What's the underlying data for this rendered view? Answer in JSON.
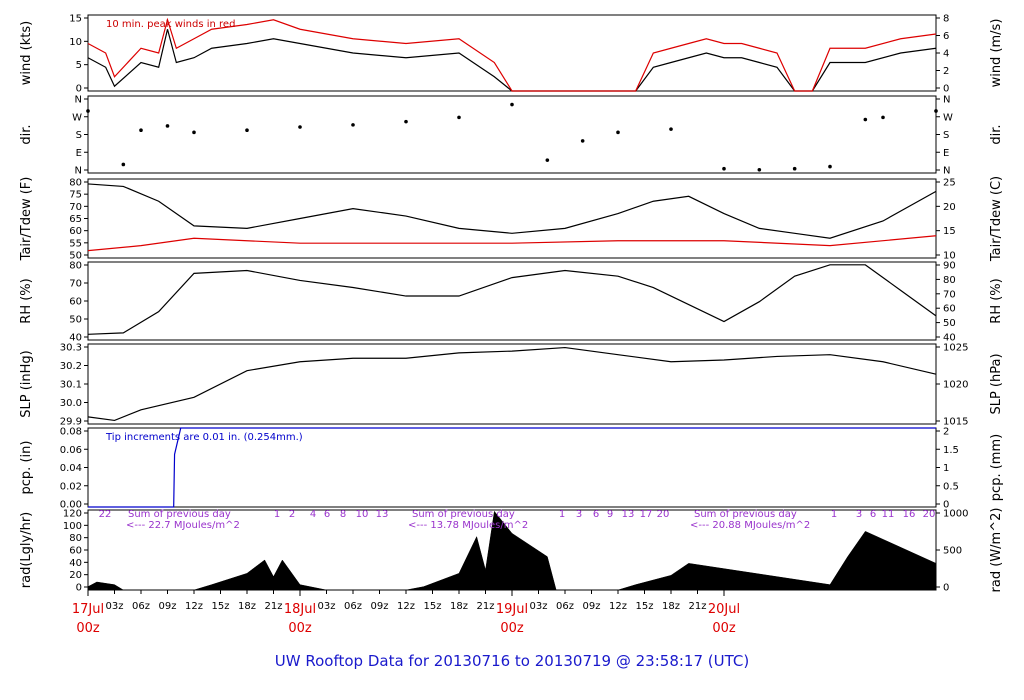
{
  "title": "UW Rooftop Data for 20130716  to  20130719 @ 23:58:17  (UTC)",
  "chart_data": [
    {
      "type": "line",
      "panel": "wind",
      "ylabel_left": "wind (kts)",
      "ylabel_right": "wind (m/s)",
      "ylim": [
        0,
        16
      ],
      "yticks_left": [
        "0",
        "5",
        "10",
        "15"
      ],
      "yticks_right": [
        "0",
        "2",
        "4",
        "6",
        "8"
      ],
      "annotation": "10 min. peak winds in red",
      "series": [
        {
          "color": "#000000",
          "x_hours": [
            0,
            2,
            3,
            6,
            8,
            9,
            10,
            12,
            14,
            18,
            21,
            24,
            30,
            36,
            42,
            46,
            48,
            50,
            54,
            58,
            62,
            64,
            66,
            68,
            70,
            72,
            74,
            76,
            78,
            80,
            82,
            84,
            88,
            92,
            96
          ],
          "values": [
            7,
            5,
            1,
            6,
            5,
            13,
            6,
            7,
            9,
            10,
            11,
            10,
            8,
            7,
            8,
            3,
            0,
            0,
            0,
            0,
            0,
            5,
            6,
            7,
            8,
            7,
            7,
            6,
            5,
            0,
            0,
            6,
            6,
            8,
            9
          ]
        },
        {
          "color": "#dd0000",
          "x_hours": [
            0,
            2,
            3,
            6,
            8,
            9,
            10,
            12,
            14,
            18,
            21,
            24,
            30,
            36,
            42,
            46,
            48,
            50,
            54,
            58,
            62,
            64,
            66,
            68,
            70,
            72,
            74,
            76,
            78,
            80,
            82,
            84,
            88,
            92,
            96
          ],
          "values": [
            10,
            8,
            3,
            9,
            8,
            15,
            9,
            11,
            13,
            14,
            15,
            13,
            11,
            10,
            11,
            6,
            0,
            0,
            0,
            0,
            0,
            8,
            9,
            10,
            11,
            10,
            10,
            9,
            8,
            0,
            0,
            9,
            9,
            11,
            12
          ]
        }
      ]
    },
    {
      "type": "scatter",
      "panel": "dir",
      "ylabel_left": "dir.",
      "ylabel_right": "dir.",
      "yticks_left": [
        "N",
        "E",
        "S",
        "W",
        "N"
      ],
      "yticks_right": [
        "N",
        "E",
        "S",
        "W",
        "N"
      ],
      "ylim": [
        0,
        360
      ],
      "x_hours": [
        0,
        4,
        6,
        9,
        12,
        18,
        24,
        30,
        36,
        42,
        48,
        52,
        56,
        60,
        66,
        72,
        76,
        80,
        84,
        88,
        90,
        96
      ],
      "values": [
        290,
        40,
        200,
        220,
        190,
        200,
        215,
        225,
        240,
        260,
        320,
        60,
        150,
        190,
        205,
        20,
        15,
        20,
        30,
        250,
        260,
        290
      ]
    },
    {
      "type": "line",
      "panel": "temp",
      "ylabel_left": "Tair/Tdew (F)",
      "ylabel_right": "Tair/Tdew (C)",
      "ylim": [
        50,
        82
      ],
      "yticks_left": [
        "50",
        "55",
        "60",
        "65",
        "70",
        "75",
        "80"
      ],
      "yticks_right": [
        "10",
        "15",
        "20",
        "25"
      ],
      "series": [
        {
          "color": "#000000",
          "x_hours": [
            0,
            4,
            8,
            12,
            18,
            24,
            30,
            36,
            42,
            48,
            54,
            60,
            64,
            68,
            72,
            76,
            80,
            84,
            90,
            96
          ],
          "values": [
            80,
            79,
            73,
            63,
            62,
            66,
            70,
            67,
            62,
            60,
            62,
            68,
            73,
            75,
            68,
            62,
            60,
            58,
            65,
            77
          ]
        },
        {
          "color": "#dd0000",
          "x_hours": [
            0,
            6,
            12,
            18,
            24,
            36,
            48,
            60,
            72,
            84,
            96
          ],
          "values": [
            53,
            55,
            58,
            57,
            56,
            56,
            56,
            57,
            57,
            55,
            59
          ]
        }
      ]
    },
    {
      "type": "line",
      "panel": "rh",
      "ylabel_left": "RH (%)",
      "ylabel_right": "RH (%)",
      "ylim": [
        35,
        90
      ],
      "yticks_left": [
        "40",
        "50",
        "60",
        "70",
        "80"
      ],
      "yticks_right": [
        "40",
        "50",
        "60",
        "70",
        "80",
        "90"
      ],
      "series": [
        {
          "color": "#000000",
          "x_hours": [
            0,
            4,
            8,
            12,
            18,
            24,
            30,
            36,
            42,
            48,
            54,
            60,
            64,
            68,
            72,
            76,
            80,
            84,
            88,
            92,
            96
          ],
          "values": [
            39,
            40,
            55,
            82,
            84,
            77,
            72,
            66,
            66,
            79,
            84,
            80,
            72,
            60,
            48,
            62,
            80,
            88,
            88,
            70,
            52
          ]
        }
      ]
    },
    {
      "type": "line",
      "panel": "slp",
      "ylabel_left": "SLP (inHg)",
      "ylabel_right": "SLP (hPa)",
      "ylim": [
        29.85,
        30.3
      ],
      "yticks_left": [
        "29.9",
        "30.0",
        "30.1",
        "30.2",
        "30.3"
      ],
      "yticks_right": [
        "1015",
        "1020",
        "1025"
      ],
      "series": [
        {
          "color": "#000000",
          "x_hours": [
            0,
            3,
            6,
            12,
            18,
            24,
            30,
            36,
            42,
            48,
            54,
            60,
            66,
            72,
            78,
            84,
            90,
            96
          ],
          "values": [
            29.89,
            29.87,
            29.93,
            30.0,
            30.15,
            30.2,
            30.22,
            30.22,
            30.25,
            30.26,
            30.28,
            30.24,
            30.2,
            30.21,
            30.23,
            30.24,
            30.2,
            30.13
          ]
        }
      ]
    },
    {
      "type": "line",
      "panel": "pcp",
      "ylabel_left": "pcp. (in)",
      "ylabel_right": "pcp. (mm)",
      "ylim": [
        0,
        0.09
      ],
      "yticks_left": [
        "0.00",
        "0.02",
        "0.04",
        "0.06",
        "0.08"
      ],
      "yticks_right": [
        "0",
        "0.5",
        "1",
        "1.5",
        "2"
      ],
      "annotation": "Tip increments are 0.01 in. (0.254mm.)",
      "series": [
        {
          "color": "#0000cc",
          "x_hours": [
            0,
            9.7,
            9.8,
            10.5,
            96
          ],
          "values": [
            0,
            0,
            0.06,
            0.09,
            0.09
          ]
        }
      ]
    },
    {
      "type": "area",
      "panel": "rad",
      "ylabel_left": "rad(Lgly/hr)",
      "ylabel_right": "rad (W/m^2)",
      "ylim": [
        0,
        120
      ],
      "yticks_left": [
        "0",
        "20",
        "40",
        "60",
        "80",
        "100",
        "120"
      ],
      "yticks_right": [
        "0",
        "500",
        "1000"
      ],
      "annotations": [
        "22",
        "Sum of previous day",
        "<--- 22.7 MJoules/m^2",
        "1",
        "2",
        "4",
        "6",
        "8",
        "10",
        "13",
        "Sum of previous day",
        "<--- 13.78 MJoules/m^2",
        "1",
        "3",
        "6",
        "9",
        "13",
        "17",
        "20",
        "Sum of previous day",
        "<--- 20.88 MJoules/m^2",
        "1",
        "3",
        "6",
        "11",
        "16",
        "20"
      ],
      "x_hours": [
        0,
        1,
        3,
        4,
        12,
        14,
        18,
        20,
        21,
        22,
        24,
        27,
        36,
        38,
        42,
        44,
        45,
        46,
        48,
        52,
        53,
        60,
        62,
        66,
        68,
        84,
        86,
        88,
        90,
        96
      ],
      "values": [
        5,
        12,
        8,
        0,
        0,
        8,
        25,
        45,
        20,
        45,
        8,
        0,
        0,
        5,
        25,
        80,
        30,
        118,
        85,
        50,
        0,
        0,
        8,
        22,
        40,
        8,
        50,
        88,
        76,
        40
      ]
    }
  ],
  "xaxis": {
    "hour_ticks": [
      "03z",
      "06z",
      "09z",
      "12z",
      "15z",
      "18z",
      "21z",
      "03z",
      "06z",
      "09z",
      "12z",
      "15z",
      "18z",
      "21z",
      "03z",
      "06z",
      "09z",
      "12z",
      "15z",
      "18z",
      "21z"
    ],
    "dates": [
      {
        "day": "17Jul",
        "zone": "00z"
      },
      {
        "day": "18Jul",
        "zone": "00z"
      },
      {
        "day": "19Jul",
        "zone": "00z"
      },
      {
        "day": "20Jul",
        "zone": "00z"
      }
    ]
  }
}
